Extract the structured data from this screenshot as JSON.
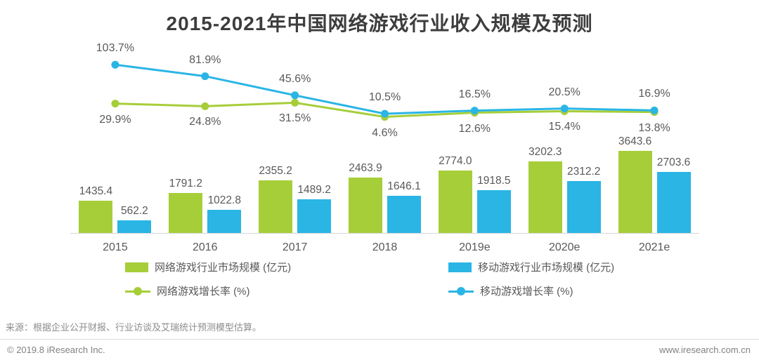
{
  "title": "2015-2021年中国网络游戏行业收入规模及预测",
  "source_note": "来源：根据企业公开财报、行业访谈及艾瑞统计预测模型估算。",
  "footer": {
    "copyright": "© 2019.8 iResearch Inc.",
    "website": "www.iresearch.com.cn"
  },
  "colors": {
    "green": "#a6ce39",
    "blue": "#2ab5e5",
    "title_text": "#3d3d3d",
    "label_text": "#595959"
  },
  "chart_data": {
    "type": "bar",
    "subtype": "grouped-bars-with-growth-lines",
    "title": "2015-2021年中国网络游戏行业收入规模及预测",
    "categories": [
      "2015",
      "2016",
      "2017",
      "2018",
      "2019e",
      "2020e",
      "2021e"
    ],
    "bar_series": [
      {
        "name": "网络游戏行业市场规模 (亿元)",
        "color_key": "green",
        "values": [
          1435.4,
          1791.2,
          2355.2,
          2463.9,
          2774.0,
          3202.3,
          3643.6
        ]
      },
      {
        "name": "移动游戏行业市场规模 (亿元)",
        "color_key": "blue",
        "values": [
          562.2,
          1022.8,
          1489.2,
          1646.1,
          1918.5,
          2312.2,
          2703.6
        ]
      }
    ],
    "line_series": [
      {
        "name": "网络游戏增长率 (%)",
        "color_key": "green",
        "label_position": "below",
        "values": [
          29.9,
          24.8,
          31.5,
          4.6,
          12.6,
          15.4,
          13.8
        ]
      },
      {
        "name": "移动游戏增长率 (%)",
        "color_key": "blue",
        "label_position": "above",
        "values": [
          103.7,
          81.9,
          45.6,
          10.5,
          16.5,
          20.5,
          16.9
        ]
      }
    ],
    "bar_unit": "亿元",
    "line_unit": "%",
    "legend_position": "bottom",
    "grid": false
  }
}
